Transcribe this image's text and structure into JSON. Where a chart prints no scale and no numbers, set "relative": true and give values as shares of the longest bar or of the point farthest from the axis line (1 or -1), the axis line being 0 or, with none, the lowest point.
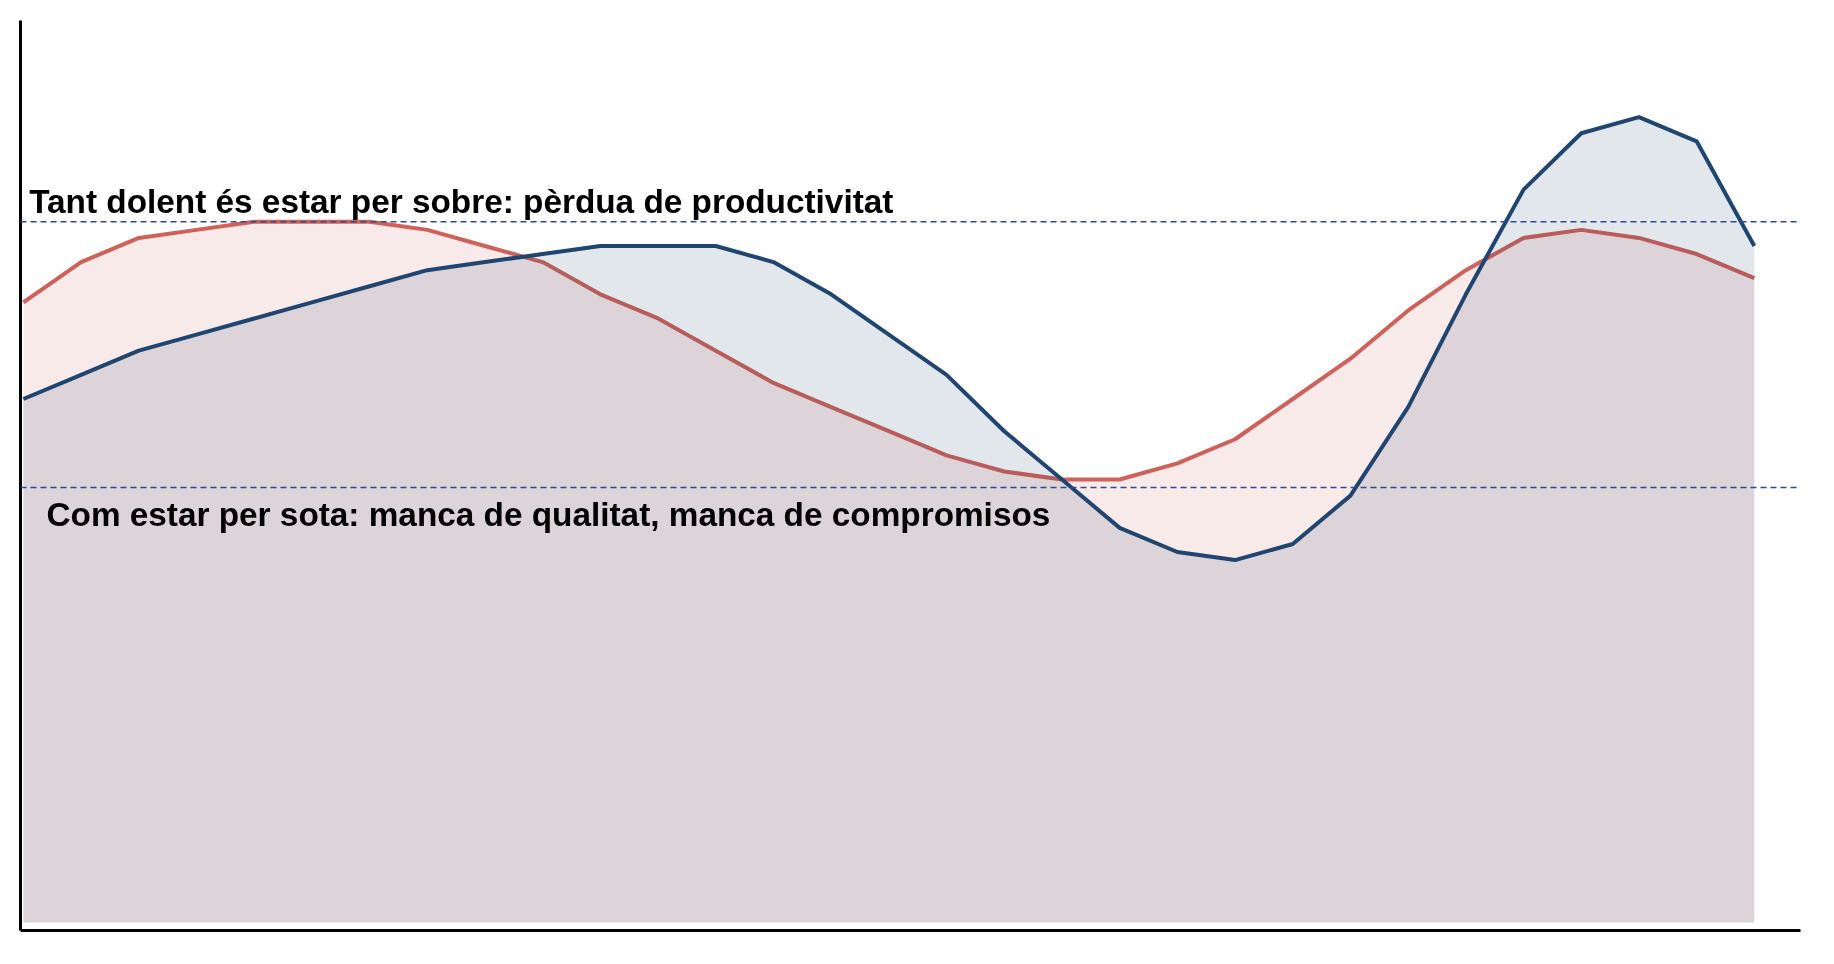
{
  "chart_data": {
    "type": "area",
    "relative": true,
    "grid": false,
    "categories": [
      null,
      null,
      null,
      null,
      null,
      null,
      null,
      null,
      null,
      null,
      null,
      null,
      null,
      null,
      null,
      null,
      null,
      null,
      null,
      null,
      null,
      null,
      null,
      null,
      null,
      null,
      null,
      null,
      null,
      null,
      null
    ],
    "series": [
      {
        "color": "#d0605a",
        "values": [
          0.77,
          0.82,
          0.85,
          0.86,
          0.87,
          0.87,
          0.87,
          0.86,
          0.84,
          0.82,
          0.78,
          0.75,
          0.71,
          0.67,
          0.64,
          0.61,
          0.58,
          0.56,
          0.55,
          0.55,
          0.57,
          0.6,
          0.65,
          0.7,
          0.76,
          0.81,
          0.85,
          0.86,
          0.85,
          0.83,
          0.8
        ]
      },
      {
        "color": "#1f4570",
        "values": [
          0.65,
          0.68,
          0.71,
          0.73,
          0.75,
          0.77,
          0.79,
          0.81,
          0.82,
          0.83,
          0.84,
          0.84,
          0.84,
          0.82,
          0.78,
          0.73,
          0.68,
          0.61,
          0.55,
          0.49,
          0.46,
          0.45,
          0.47,
          0.53,
          0.64,
          0.78,
          0.91,
          0.98,
          1.0,
          0.97,
          0.84
        ]
      }
    ],
    "ref_lines": [
      {
        "axis": "y",
        "value": 0.87,
        "label": "Tant dolent és estar per sobre: pèrdua de productivitat",
        "color": "#2a4a9a",
        "line_style": "dashed"
      },
      {
        "axis": "y",
        "value": 0.54,
        "label": "Com estar per sota: manca de qualitat, manca de compromisos",
        "color": "#2a4a9a",
        "line_style": "dashed"
      }
    ]
  }
}
